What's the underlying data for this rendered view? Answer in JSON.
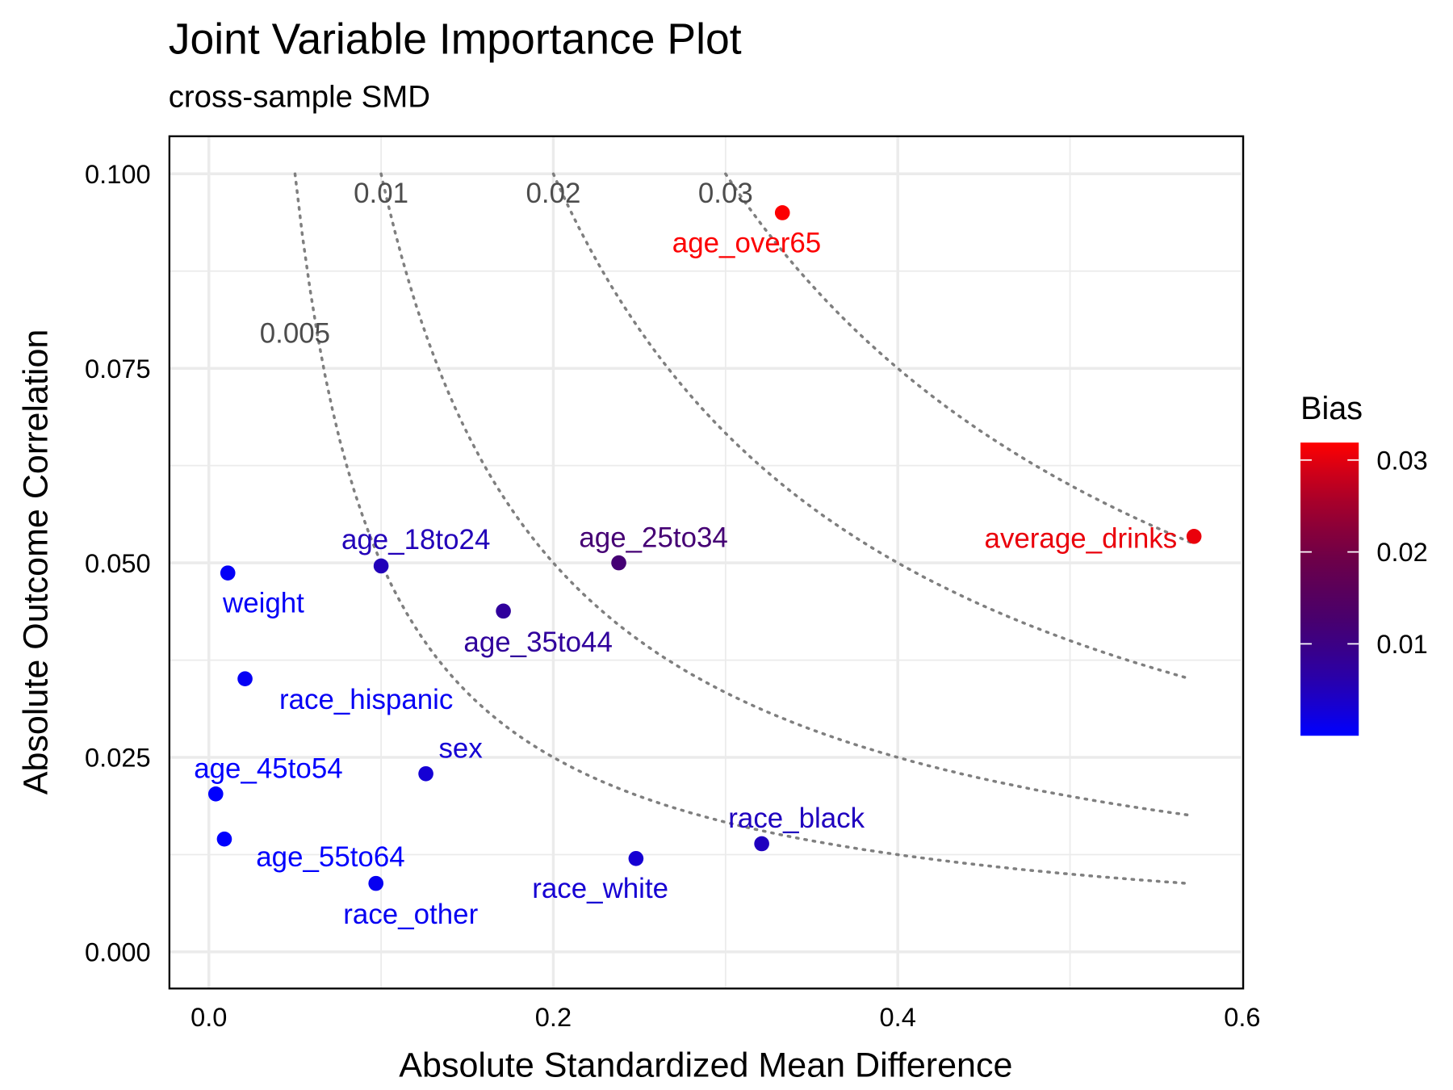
{
  "chart_data": {
    "type": "scatter",
    "title": "Joint Variable Importance Plot",
    "subtitle": "cross-sample SMD",
    "xlabel": "Absolute Standardized Mean Difference",
    "ylabel": "Absolute Outcome Correlation",
    "xlim": [
      -0.011,
      0.6
    ],
    "ylim": [
      -0.0047,
      0.1048
    ],
    "xticks": [
      0.0,
      0.2,
      0.4,
      0.6
    ],
    "xtick_labels": [
      "0.0",
      "0.2",
      "0.4",
      "0.6"
    ],
    "yticks": [
      0.0,
      0.025,
      0.05,
      0.075,
      0.1
    ],
    "ytick_labels": [
      "0.000",
      "0.025",
      "0.050",
      "0.075",
      "0.100"
    ],
    "grid": true,
    "points": [
      {
        "label": "age_over65",
        "x": 0.333,
        "y": 0.095,
        "bias": 0.0317
      },
      {
        "label": "average_drinks",
        "x": 0.572,
        "y": 0.0534,
        "bias": 0.0305
      },
      {
        "label": "age_18to24",
        "x": 0.1,
        "y": 0.0496,
        "bias": 0.005
      },
      {
        "label": "age_25to34",
        "x": 0.238,
        "y": 0.05,
        "bias": 0.0119
      },
      {
        "label": "weight",
        "x": 0.011,
        "y": 0.0487,
        "bias": 0.0005
      },
      {
        "label": "age_35to44",
        "x": 0.171,
        "y": 0.0438,
        "bias": 0.0075
      },
      {
        "label": "race_hispanic",
        "x": 0.021,
        "y": 0.0351,
        "bias": 0.0007
      },
      {
        "label": "sex",
        "x": 0.126,
        "y": 0.0229,
        "bias": 0.0029
      },
      {
        "label": "age_45to54",
        "x": 0.004,
        "y": 0.0203,
        "bias": 0.0001
      },
      {
        "label": "age_55to64",
        "x": 0.009,
        "y": 0.0145,
        "bias": 0.0001
      },
      {
        "label": "race_other",
        "x": 0.097,
        "y": 0.0088,
        "bias": 0.0009
      },
      {
        "label": "race_white",
        "x": 0.248,
        "y": 0.012,
        "bias": 0.003
      },
      {
        "label": "race_black",
        "x": 0.321,
        "y": 0.0139,
        "bias": 0.0045
      }
    ],
    "contours": [
      {
        "level": 0.005,
        "label": "0.005"
      },
      {
        "level": 0.01,
        "label": "0.01"
      },
      {
        "level": 0.02,
        "label": "0.02"
      },
      {
        "level": 0.03,
        "label": "0.03"
      }
    ],
    "legend": {
      "title": "Bias",
      "position": "right",
      "low_color": "#0000ff",
      "high_color": "#ff0000",
      "range": [
        0.0,
        0.0319
      ],
      "ticks": [
        0.01,
        0.02,
        0.03
      ],
      "tick_labels": [
        "0.01",
        "0.02",
        "0.03"
      ]
    }
  }
}
